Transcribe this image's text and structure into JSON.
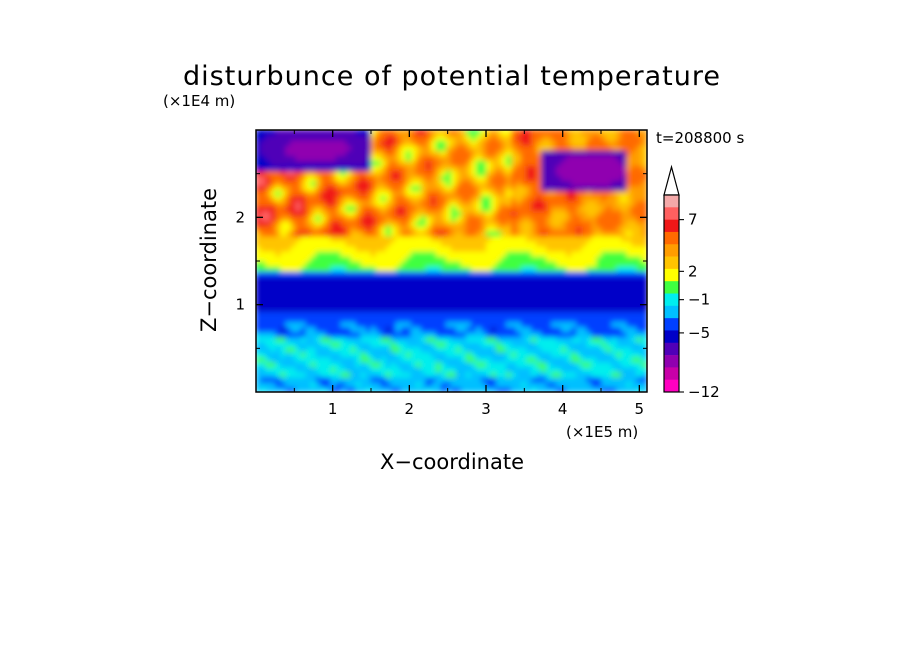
{
  "chart_data": {
    "type": "heatmap",
    "title": "disturbunce of potential temperature",
    "xlabel": "X−coordinate",
    "ylabel": "Z−coordinate",
    "x_unit": "(×1E5 m)",
    "y_unit": "(×1E4 m)",
    "time_label": "t=208800 s",
    "xlim": [
      0,
      5.1
    ],
    "ylim": [
      0,
      3.0
    ],
    "x_ticks": [
      "1",
      "2",
      "3",
      "4",
      "5"
    ],
    "x_tick_values": [
      1,
      2,
      3,
      4,
      5
    ],
    "y_ticks": [
      "1",
      "2"
    ],
    "y_tick_values": [
      1,
      2
    ],
    "colorbar": {
      "labels": [
        "7",
        "2",
        "−1",
        "−5",
        "−12"
      ],
      "label_values": [
        7,
        2,
        -1,
        -5,
        -12
      ],
      "colors": [
        "#f4a9a9",
        "#ff6060",
        "#f01818",
        "#ff6a00",
        "#ff9d00",
        "#ffc400",
        "#ffff00",
        "#40ff40",
        "#00eeee",
        "#00c0ff",
        "#0040ff",
        "#0000c8",
        "#5000b8",
        "#9000b0",
        "#c800a8",
        "#ff00c0"
      ],
      "arrow_top": true
    },
    "field_regions": [
      {
        "level": -1,
        "x": [
          0,
          5.1
        ],
        "z": [
          0,
          0.85
        ]
      },
      {
        "level": -5,
        "x": [
          0,
          5.1
        ],
        "z": [
          0.7,
          1.4
        ]
      },
      {
        "level": 1,
        "x": [
          0,
          5.1
        ],
        "z": [
          1.4,
          1.8
        ]
      },
      {
        "level": 4,
        "x": [
          0,
          3.0
        ],
        "z": [
          1.8,
          3.0
        ]
      },
      {
        "level": 2,
        "x": [
          3.7,
          5.1
        ],
        "z": [
          1.7,
          2.4
        ]
      },
      {
        "level": -8,
        "x": [
          0.5,
          1.2
        ],
        "z": [
          2.6,
          3.0
        ]
      },
      {
        "level": -8,
        "x": [
          4.0,
          4.7
        ],
        "z": [
          2.3,
          2.7
        ]
      }
    ]
  }
}
